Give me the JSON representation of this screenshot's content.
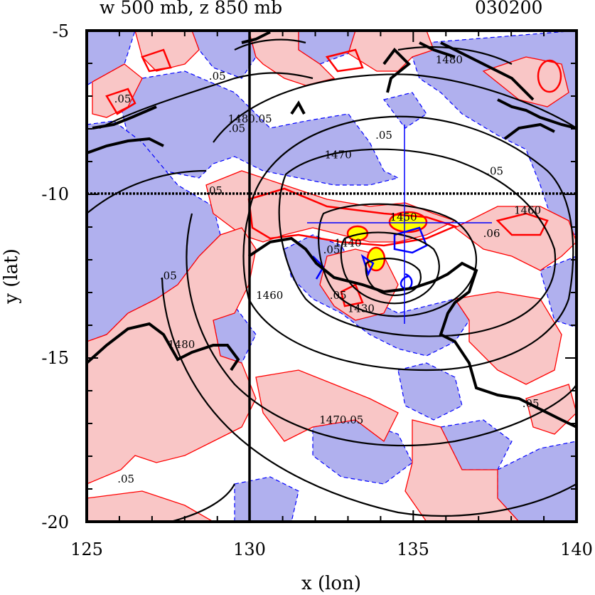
{
  "title": {
    "left": "w 500 mb, z 850 mb",
    "right": "030200"
  },
  "axes": {
    "x_label": "x (lon)",
    "y_label": "y (lat)",
    "x_range": [
      125,
      140
    ],
    "y_range": [
      -20,
      -5
    ],
    "x_ticks": [
      "125",
      "130",
      "135",
      "140"
    ],
    "y_ticks": [
      "-5",
      "-10",
      "-15",
      "-20"
    ]
  },
  "colors": {
    "positive_fill": "#f9c6c6",
    "negative_fill": "#b0b0ee",
    "strong_positive": "#ffff00",
    "red_contour": "#ff0000",
    "blue_contour": "#0000ff",
    "height_contour": "#000000"
  },
  "chart_data": {
    "type": "contour-map",
    "fields": [
      {
        "name": "w 500 mb",
        "shading": "red positive / blue negative",
        "contour_interval_label": ".05"
      },
      {
        "name": "z 850 mb",
        "contours": [
          1430,
          1440,
          1450,
          1460,
          1470,
          1480
        ]
      }
    ],
    "gridlines": {
      "lon": 130,
      "lat": -10
    },
    "center_marker": {
      "lon": 134.8,
      "lat": -11.8
    },
    "contour_labels": [
      {
        "text": "1470",
        "lon": 132.7,
        "lat": -8.9
      },
      {
        "text": "1460",
        "lon": 138.5,
        "lat": -10.6
      },
      {
        "text": "1450",
        "lon": 134.7,
        "lat": -10.8
      },
      {
        "text": "1440",
        "lon": 133.0,
        "lat": -11.6
      },
      {
        "text": "1430",
        "lon": 133.4,
        "lat": -13.6
      },
      {
        "text": "1480",
        "lon": 136.1,
        "lat": -6.0
      },
      {
        "text": "1460",
        "lon": 130.6,
        "lat": -13.2
      },
      {
        "text": "1480",
        "lon": 127.9,
        "lat": -14.7
      },
      {
        "text": "1480.05",
        "lon": 130.0,
        "lat": -7.8
      },
      {
        "text": "1470.05",
        "lon": 132.8,
        "lat": -17.0
      },
      {
        "text": ".05",
        "lon": 129.0,
        "lat": -6.5
      },
      {
        "text": ".05",
        "lon": 129.6,
        "lat": -8.1
      },
      {
        "text": ".05",
        "lon": 126.1,
        "lat": -7.2
      },
      {
        "text": ".05",
        "lon": 127.5,
        "lat": -12.6
      },
      {
        "text": ".05",
        "lon": 128.9,
        "lat": -10.0
      },
      {
        "text": ".05",
        "lon": 126.2,
        "lat": -18.8
      },
      {
        "text": ".05",
        "lon": 138.6,
        "lat": -16.5
      },
      {
        "text": ".05",
        "lon": 132.7,
        "lat": -13.2
      },
      {
        "text": ".05",
        "lon": 137.5,
        "lat": -9.4
      },
      {
        "text": ".05",
        "lon": 134.1,
        "lat": -8.3
      },
      {
        "text": ".06",
        "lon": 137.4,
        "lat": -11.3
      },
      {
        "text": ".05",
        "lon": 132.5,
        "lat": -11.8
      }
    ]
  }
}
